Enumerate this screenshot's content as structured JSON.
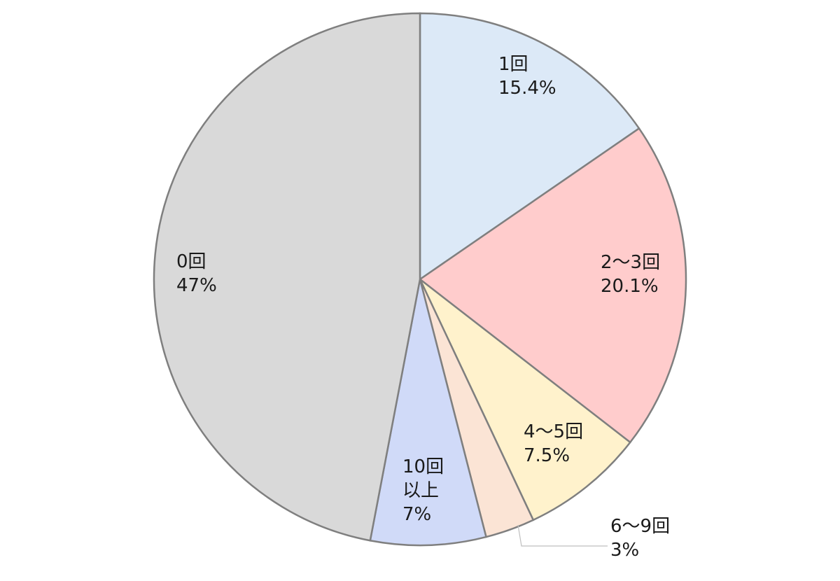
{
  "chart_data": {
    "type": "pie",
    "start": "top",
    "direction": "clockwise",
    "slices": [
      {
        "label": "1回",
        "value": 15.4,
        "value_label": "15.4%",
        "color": "#dce9f7"
      },
      {
        "label": "2～3回",
        "value": 20.1,
        "value_label": "20.1%",
        "color": "#ffcccc"
      },
      {
        "label": "4～5回",
        "value": 7.5,
        "value_label": "7.5%",
        "color": "#fff2cc"
      },
      {
        "label": "6～9回",
        "value": 3,
        "value_label": "3%",
        "color": "#fbe4d5"
      },
      {
        "label": "10回以上",
        "value": 7,
        "value_label": "7%",
        "color": "#d0daf8"
      },
      {
        "label": "0回",
        "value": 47,
        "value_label": "47%",
        "color": "#d9d9d9"
      }
    ],
    "slice_border_color": "#7f7f7f"
  }
}
